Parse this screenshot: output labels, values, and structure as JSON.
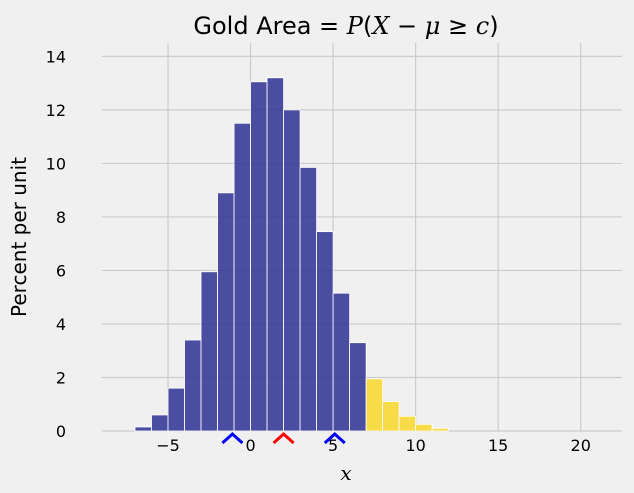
{
  "chart_data": {
    "type": "bar",
    "title": "Gold Area = P(X − μ ≥ c)",
    "xlabel": "x",
    "ylabel": "Percent per unit",
    "xlim": [
      -9,
      22.5
    ],
    "ylim": [
      0,
      14.5
    ],
    "xticks": [
      -5,
      0,
      5,
      10,
      15,
      20
    ],
    "xtick_labels": [
      "−5",
      "0",
      "5",
      "10",
      "15",
      "20"
    ],
    "yticks": [
      0,
      2,
      4,
      6,
      8,
      10,
      12,
      14
    ],
    "ytick_labels": [
      "0",
      "2",
      "4",
      "6",
      "8",
      "10",
      "12",
      "14"
    ],
    "grid": true,
    "bin_width": 1,
    "series": [
      {
        "color": "#2e3192",
        "bins": [
          {
            "left": -7,
            "value": 0.15
          },
          {
            "left": -6,
            "value": 0.6
          },
          {
            "left": -5,
            "value": 1.6
          },
          {
            "left": -4,
            "value": 3.4
          },
          {
            "left": -3,
            "value": 5.95
          },
          {
            "left": -2,
            "value": 8.9
          },
          {
            "left": -1,
            "value": 11.5
          },
          {
            "left": 0,
            "value": 13.05
          },
          {
            "left": 1,
            "value": 13.2
          },
          {
            "left": 2,
            "value": 12.0
          },
          {
            "left": 3,
            "value": 9.85
          },
          {
            "left": 4,
            "value": 7.45
          },
          {
            "left": 5,
            "value": 5.15
          },
          {
            "left": 6,
            "value": 3.3
          }
        ]
      },
      {
        "color": "#f8d72b",
        "bins": [
          {
            "left": 7,
            "value": 1.95
          },
          {
            "left": 8,
            "value": 1.1
          },
          {
            "left": 9,
            "value": 0.55
          },
          {
            "left": 10,
            "value": 0.25
          },
          {
            "left": 11,
            "value": 0.1
          }
        ]
      }
    ],
    "markers": [
      {
        "x": -1.1,
        "color": "#0000ff"
      },
      {
        "x": 2.0,
        "color": "#ff0000"
      },
      {
        "x": 5.1,
        "color": "#0000ff"
      }
    ]
  }
}
